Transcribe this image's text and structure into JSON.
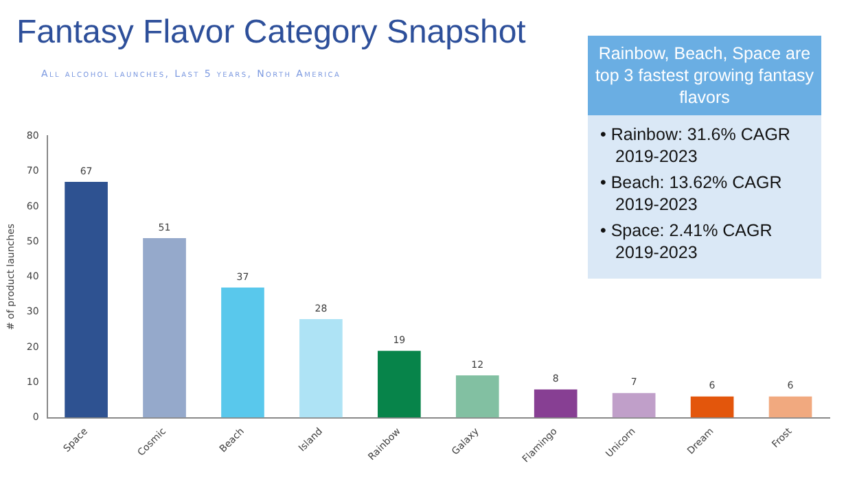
{
  "chart_data": {
    "type": "bar",
    "title": "Fantasy Flavor Category Snapshot",
    "subtitle": "All alcohol launches, Last 5 years, North America",
    "ylabel": "# of product launches",
    "categories": [
      "Space",
      "Cosmic",
      "Beach",
      "Island",
      "Rainbow",
      "Galaxy",
      "Flamingo",
      "Unicorn",
      "Dream",
      "Frost"
    ],
    "values": [
      67,
      51,
      37,
      28,
      19,
      12,
      8,
      7,
      6,
      6
    ],
    "colors": [
      "#2e5291",
      "#95a9cb",
      "#59c8ec",
      "#aee3f5",
      "#07844a",
      "#82c0a2",
      "#873f93",
      "#c09fc9",
      "#e3560c",
      "#f1a97f"
    ],
    "ylim": [
      0,
      80
    ],
    "yticks": [
      0,
      10,
      20,
      30,
      40,
      50,
      60,
      70,
      80
    ],
    "grid": false,
    "data_labels": true,
    "annotations": [
      "Rainbow, Beach, Space are top 3 fastest growing fantasy flavors",
      "• Rainbow: 31.6% CAGR 2019-2023",
      "• Beach: 13.62% CAGR 2019-2023",
      "• Space: 2.41% CAGR 2019-2023"
    ]
  }
}
